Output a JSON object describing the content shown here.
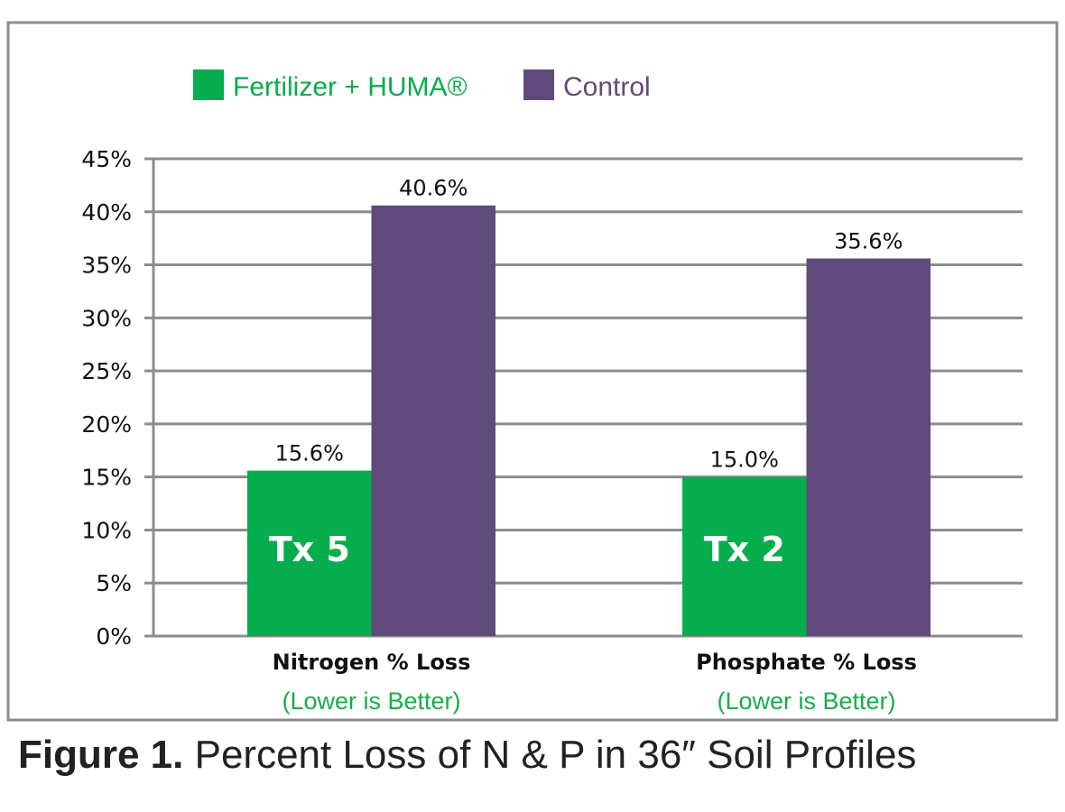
{
  "chart_data": {
    "type": "bar",
    "title": "",
    "xlabel": "",
    "ylabel": "",
    "ylim": [
      0,
      45
    ],
    "yticks": [
      0,
      5,
      10,
      15,
      20,
      25,
      30,
      35,
      40,
      45
    ],
    "ytick_labels": [
      "0%",
      "5%",
      "10%",
      "15%",
      "20%",
      "25%",
      "30%",
      "35%",
      "40%",
      "45%"
    ],
    "grid": true,
    "legend_position": "top",
    "categories": [
      "Nitrogen % Loss",
      "Phosphate % Loss"
    ],
    "category_sublabels": [
      "(Lower is Better)",
      "(Lower is Better)"
    ],
    "series": [
      {
        "name": "Fertilizer + HUMA®",
        "color": "#06ad4c",
        "values": [
          15.6,
          15.0
        ],
        "data_labels": [
          "15.6%",
          "15.0%"
        ],
        "bar_tags": [
          "Tx 5",
          "Tx 2"
        ]
      },
      {
        "name": "Control",
        "color": "#604a7b",
        "values": [
          40.6,
          35.6
        ],
        "data_labels": [
          "40.6%",
          "35.6%"
        ]
      }
    ]
  },
  "caption": {
    "prefix": "Figure 1.",
    "text": " Percent Loss of N & P in 36″ Soil Profiles"
  },
  "colors": {
    "grid": "#8c8c8c",
    "frame": "#8c8c8c",
    "sublabel": "#1aac4a"
  }
}
